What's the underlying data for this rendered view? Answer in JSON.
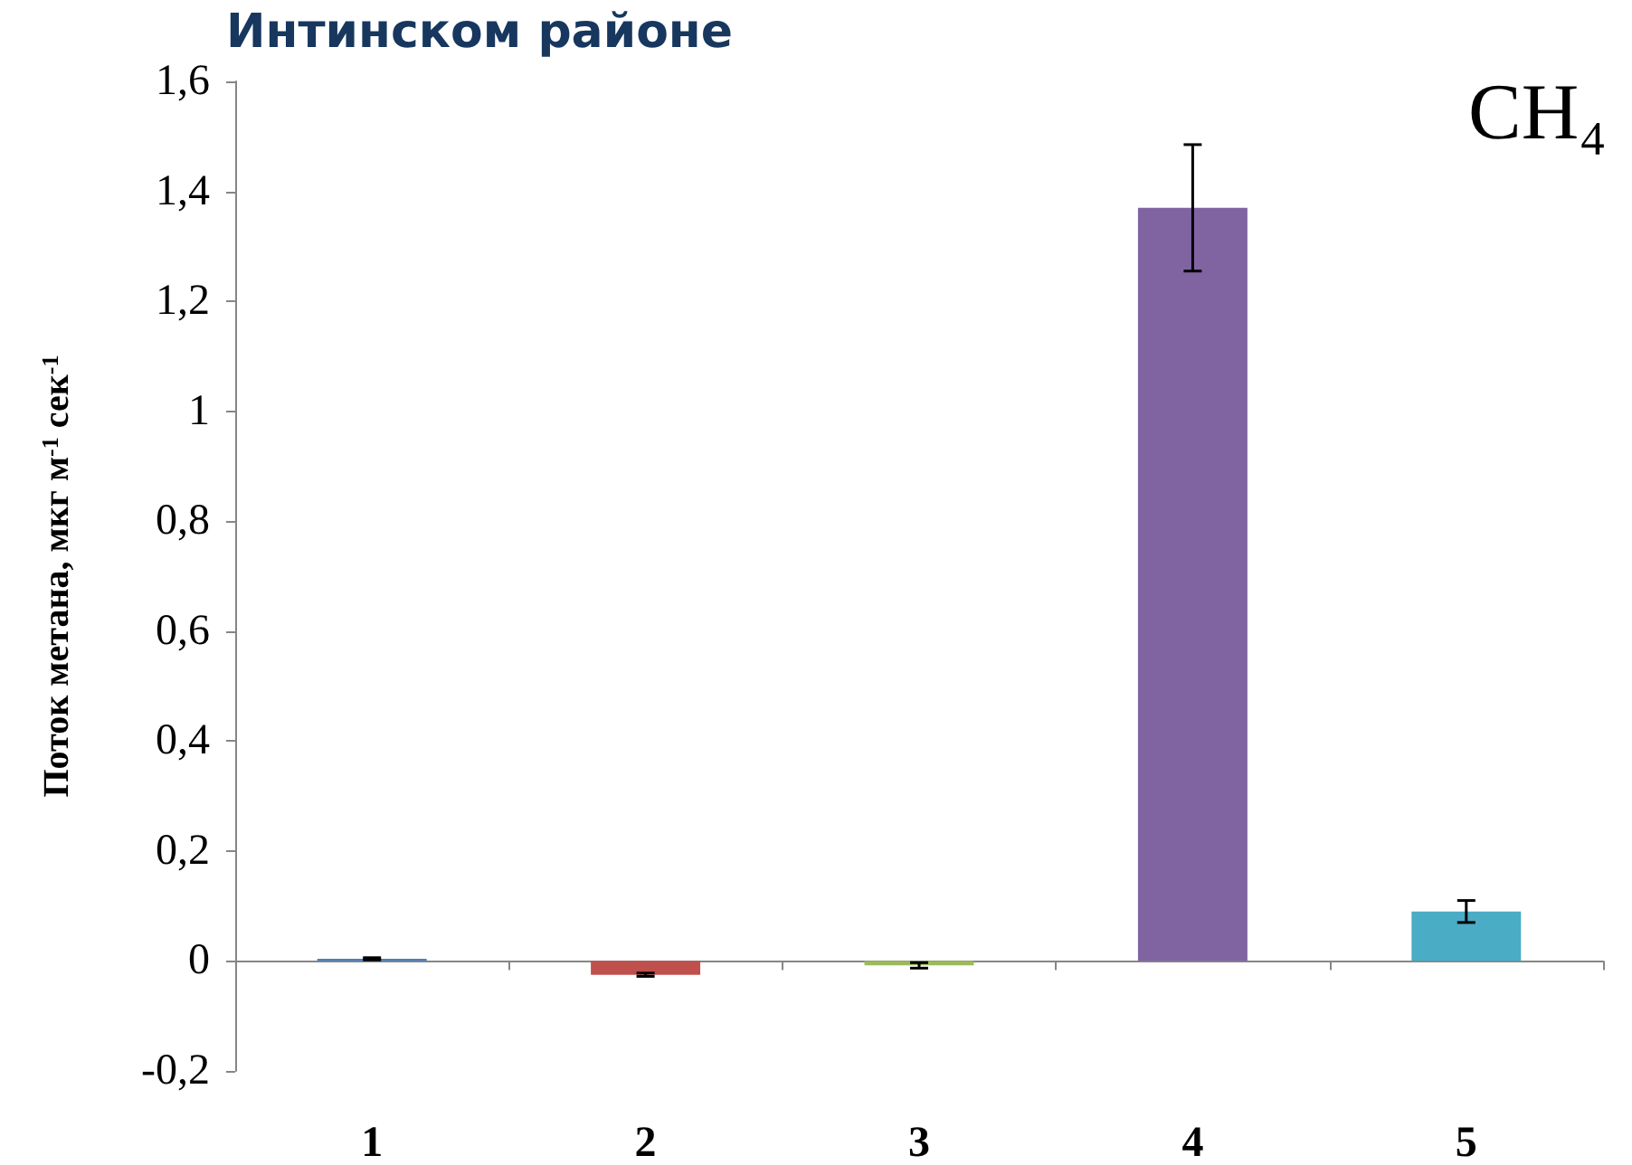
{
  "chart_data": {
    "type": "bar",
    "title": "Интинском районе",
    "ylabel": "Поток метана, мкг м$^{-1}$ сек$^{-1}$",
    "annotations": [
      "CH₄"
    ],
    "categories": [
      "1",
      "2",
      "3",
      "4",
      "5"
    ],
    "values": [
      0.004,
      -0.025,
      -0.008,
      1.37,
      0.09
    ],
    "colors": [
      "#4f81bd",
      "#c0504d",
      "#9bbb59",
      "#8064a2",
      "#4bacc6"
    ],
    "errors": [
      0.002,
      0.003,
      0.005,
      0.115,
      0.02
    ],
    "ylim": [
      -0.2,
      1.6
    ],
    "yticks": [
      {
        "value": -0.2,
        "label": "-0,2"
      },
      0,
      {
        "value": 0.2,
        "label": "0,2"
      },
      {
        "value": 0.4,
        "label": "0,4"
      },
      {
        "value": 0.6,
        "label": "0,6"
      },
      {
        "value": 0.8,
        "label": "0,8"
      },
      1,
      {
        "value": 1.2,
        "label": "1,2"
      },
      {
        "value": 1.4,
        "label": "1,4"
      },
      {
        "value": 1.6,
        "label": "1,6"
      }
    ],
    "tick_labels": true
  }
}
